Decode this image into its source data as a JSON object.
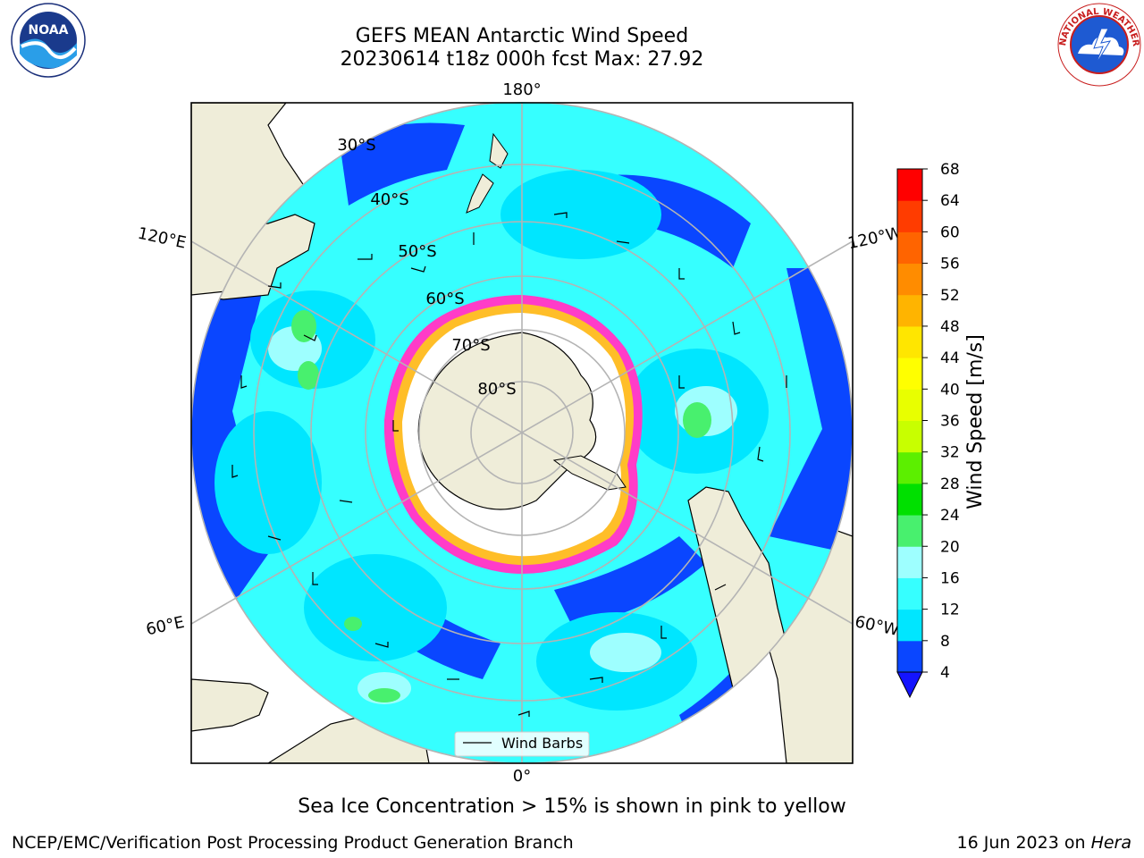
{
  "title": {
    "line1": "GEFS MEAN Antarctic Wind Speed",
    "line2": "20230614 t18z 000h fcst   Max: 27.92"
  },
  "map": {
    "projection": "south-polar-stereographic",
    "longitude_labels": [
      "180°",
      "120°E",
      "120°W",
      "60°E",
      "60°W",
      "0°"
    ],
    "latitude_labels": [
      "30°S",
      "40°S",
      "50°S",
      "60°S",
      "70°S",
      "80°S"
    ],
    "legend": {
      "label": "Wind Barbs"
    }
  },
  "colorbar": {
    "label": "Wind Speed [m/s]",
    "ticks": [
      "4",
      "8",
      "12",
      "16",
      "20",
      "24",
      "28",
      "32",
      "36",
      "40",
      "44",
      "48",
      "52",
      "56",
      "60",
      "64",
      "68"
    ],
    "colors": [
      "#0a46ff",
      "#00e6ff",
      "#36ffff",
      "#9effff",
      "#48f06e",
      "#00e000",
      "#5cef00",
      "#c8ff00",
      "#e8ff00",
      "#ffff00",
      "#ffe600",
      "#ffb400",
      "#ff8c00",
      "#ff6400",
      "#ff3c00",
      "#ff0000"
    ],
    "under_color": "#1414ff"
  },
  "colors": {
    "land": "#efedd9",
    "ice": "#ffffff",
    "ice_edge_pink": "#ff3cc8",
    "ice_edge_yellow": "#ffbe28",
    "grid": "#b4b4b4"
  },
  "logos": {
    "left": {
      "name": "NOAA",
      "text": "NOAA"
    },
    "right": {
      "name": "National Weather Service",
      "text": "NATIONAL WEATHER SERVICE"
    }
  },
  "bottom_note": "Sea Ice Concentration > 15% is shown in pink to yellow",
  "footer": {
    "left": "NCEP/EMC/Verification Post Processing Product Generation Branch",
    "right_date": "16 Jun 2023 on ",
    "right_host": "Hera"
  }
}
